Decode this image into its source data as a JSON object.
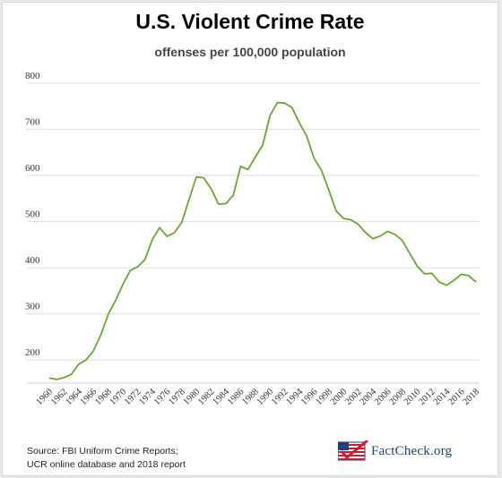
{
  "chart_data": {
    "type": "line",
    "title": "U.S. Violent Crime Rate",
    "subtitle": "offenses per 100,000 population",
    "xlabel": "",
    "ylabel": "",
    "xlim": [
      1960,
      2018
    ],
    "ylim": [
      150,
      800
    ],
    "yticks": [
      200,
      300,
      400,
      500,
      600,
      700,
      800
    ],
    "ytick_labels": [
      "200",
      "300",
      "400",
      "500",
      "600",
      "700",
      "800"
    ],
    "xtick_labels": [
      "1960",
      "1962",
      "1964",
      "1966",
      "1968",
      "1970",
      "1972",
      "1974",
      "1976",
      "1978",
      "1980",
      "1982",
      "1984",
      "1986",
      "1988",
      "1990",
      "1992",
      "1994",
      "1996",
      "1998",
      "2000",
      "2002",
      "2004",
      "2006",
      "2008",
      "2010",
      "2012",
      "2014",
      "2016",
      "2018"
    ],
    "grid": "horizontal",
    "line_color": "#6aa43a",
    "series": [
      {
        "name": "",
        "x": [
          1960,
          1961,
          1962,
          1963,
          1964,
          1965,
          1966,
          1967,
          1968,
          1969,
          1970,
          1971,
          1972,
          1973,
          1974,
          1975,
          1976,
          1977,
          1978,
          1979,
          1980,
          1981,
          1982,
          1983,
          1984,
          1985,
          1986,
          1987,
          1988,
          1989,
          1990,
          1991,
          1992,
          1993,
          1994,
          1995,
          1996,
          1997,
          1998,
          1999,
          2000,
          2001,
          2002,
          2003,
          2004,
          2005,
          2006,
          2007,
          2008,
          2009,
          2010,
          2011,
          2012,
          2013,
          2014,
          2015,
          2016,
          2017,
          2018
        ],
        "values": [
          161,
          158,
          162,
          169,
          191,
          200,
          220,
          254,
          299,
          329,
          364,
          394,
          402,
          418,
          461,
          487,
          468,
          476,
          498,
          548,
          597,
          595,
          571,
          538,
          539,
          557,
          620,
          613,
          640,
          666,
          730,
          758,
          757,
          747,
          714,
          685,
          637,
          611,
          568,
          523,
          507,
          504,
          494,
          476,
          463,
          469,
          479,
          472,
          459,
          431,
          404,
          387,
          388,
          369,
          362,
          373,
          386,
          383,
          369
        ]
      }
    ]
  },
  "source": {
    "line1": "Source: FBI Uniform Crime Reports;",
    "line2": "UCR online database and 2018 report"
  },
  "logo": {
    "text": "FactCheck.org"
  }
}
